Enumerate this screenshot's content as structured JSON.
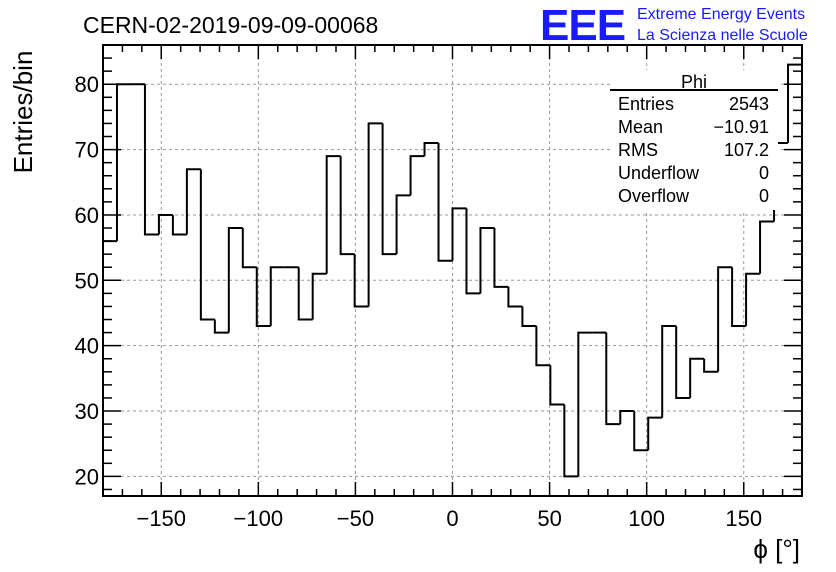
{
  "chart_data": {
    "type": "bar",
    "style": "step-histogram",
    "title": "CERN-02-2019-09-09-00068",
    "xlabel": "ϕ [°]",
    "ylabel": "Entries/bin",
    "xlim": [
      -180,
      180
    ],
    "ylim": [
      17,
      86
    ],
    "bin_width": 7.2,
    "xticks": [
      -150,
      -100,
      -50,
      0,
      50,
      100,
      150
    ],
    "xtick_labels": [
      "−150",
      "−100",
      "−50",
      "0",
      "50",
      "100",
      "150"
    ],
    "yticks": [
      20,
      30,
      40,
      50,
      60,
      70,
      80
    ],
    "ytick_labels": [
      "20",
      "30",
      "40",
      "50",
      "60",
      "70",
      "80"
    ],
    "grid": true,
    "values": [
      56,
      80,
      80,
      57,
      60,
      57,
      67,
      44,
      42,
      58,
      52,
      43,
      52,
      52,
      44,
      51,
      69,
      54,
      46,
      74,
      54,
      63,
      69,
      71,
      53,
      61,
      48,
      58,
      49,
      46,
      43,
      37,
      31,
      20,
      42,
      42,
      28,
      30,
      24,
      29,
      43,
      32,
      38,
      36,
      52,
      43,
      51,
      59,
      71,
      83
    ],
    "stats": {
      "name": "Phi",
      "rows": [
        {
          "label": "Entries",
          "value": "2543"
        },
        {
          "label": "Mean",
          "value": "−10.91"
        },
        {
          "label": "RMS",
          "value": "107.2"
        },
        {
          "label": "Underflow",
          "value": "0"
        },
        {
          "label": "Overflow",
          "value": "0"
        }
      ]
    }
  },
  "logo": {
    "text": "EEE",
    "line1": "Extreme Energy Events",
    "line2": "La Scienza nelle Scuole",
    "color": "#1a1aff"
  }
}
